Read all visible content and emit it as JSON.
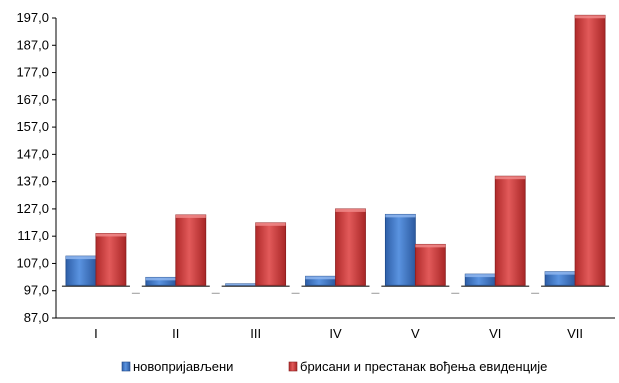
{
  "chart_data": {
    "type": "bar",
    "categories": [
      "I",
      "II",
      "III",
      "IV",
      "V",
      "VI",
      "VII"
    ],
    "series": [
      {
        "name": "новопријављени",
        "color": "#3b73c4",
        "values": [
          109.7,
          101.9,
          99.3,
          102.3,
          125.0,
          103.1,
          104.0
        ]
      },
      {
        "name": "брисани и престанак вођења евиденције",
        "color": "#cc3a3a",
        "values": [
          118.0,
          124.8,
          121.9,
          127.0,
          114.0,
          139.0,
          198.0
        ]
      }
    ],
    "ylim": [
      87.0,
      197.0
    ],
    "yticks": [
      "87,0",
      "97,0",
      "107,0",
      "117,0",
      "127,0",
      "137,0",
      "147,0",
      "157,0",
      "167,0",
      "177,0",
      "187,0",
      "197,0"
    ],
    "baseline": 99.0,
    "title": "",
    "xlabel": "",
    "ylabel": "",
    "legend_position": "bottom",
    "grid": false
  }
}
